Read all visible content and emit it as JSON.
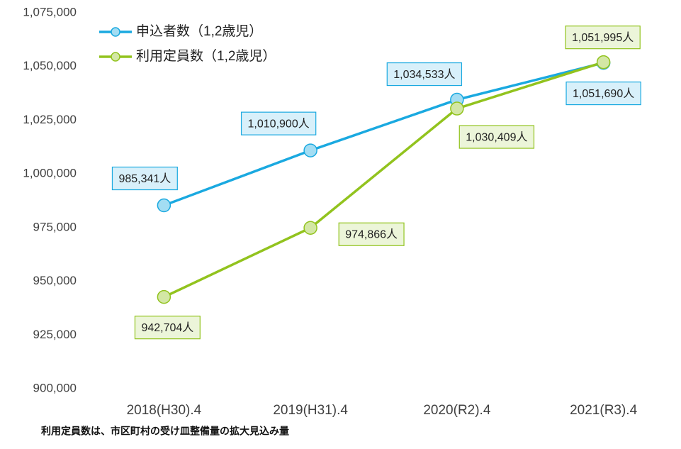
{
  "chart_data": {
    "type": "line",
    "categories": [
      "2018(H30).4",
      "2019(H31).4",
      "2020(R2).4",
      "2021(R3).4"
    ],
    "series": [
      {
        "name": "申込者数（1,2歳児）",
        "color": "#1aa9e0",
        "values": [
          985341,
          1010900,
          1034533,
          1051690
        ],
        "value_labels": [
          "985,341人",
          "1,010,900人",
          "1,034,533人",
          "1,051,690人"
        ]
      },
      {
        "name": "利用定員数（1,2歳児）",
        "color": "#92c31e",
        "values": [
          942704,
          974866,
          1030409,
          1051995
        ],
        "value_labels": [
          "942,704人",
          "974,866人",
          "1,030,409人",
          "1,051,995人"
        ]
      }
    ],
    "ylim": [
      900000,
      1075000
    ],
    "yticks": [
      {
        "value": 900000,
        "label": "900,000"
      },
      {
        "value": 925000,
        "label": "925,000"
      },
      {
        "value": 950000,
        "label": "950,000"
      },
      {
        "value": 975000,
        "label": "975,000"
      },
      {
        "value": 1000000,
        "label": "1,000,000"
      },
      {
        "value": 1025000,
        "label": "1,025,000"
      },
      {
        "value": 1050000,
        "label": "1,050,000"
      },
      {
        "value": 1075000,
        "label": "1,075,000"
      }
    ],
    "grid": false,
    "legend": "top-left",
    "note": "利用定員数は、市区町村の受け皿整備量の拡大見込み量"
  }
}
